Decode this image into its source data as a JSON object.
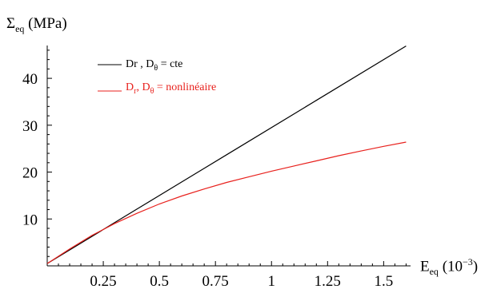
{
  "chart_data": {
    "type": "line",
    "ylabel": {
      "main": "Σ",
      "sub": "eq",
      "unit": " (MPa)"
    },
    "xlabel": {
      "main": "E",
      "sub": "eq",
      "unit_pre": " (10",
      "unit_exp": "−3",
      "unit_post": ")"
    },
    "x_ticks": [
      0.25,
      0.5,
      0.75,
      1,
      1.25,
      1.5
    ],
    "x_tick_labels": [
      "0.25",
      "0.5",
      "0.75",
      "1",
      "1.25",
      "1.5"
    ],
    "y_ticks": [
      10,
      20,
      30,
      40
    ],
    "y_tick_labels": [
      "10",
      "20",
      "30",
      "40"
    ],
    "xlim": [
      0,
      1.62
    ],
    "ylim": [
      0,
      47
    ],
    "grid": false,
    "legend_position": "top-left",
    "series": [
      {
        "name": "Dr , Dθ = cte",
        "legend": {
          "p1": "Dr , D",
          "p1sub": "",
          "p2sub": "θ",
          "p3": " = cte"
        },
        "color": "#000000",
        "x": [
          0.0,
          0.4,
          0.8,
          1.2,
          1.6
        ],
        "y": [
          0.5,
          12.1,
          23.7,
          35.3,
          46.9
        ]
      },
      {
        "name": "Dr , Dθ = nonlinéaire",
        "legend": {
          "p1": "D",
          "p1sub": "r",
          "p2sub": "θ",
          "p3": " = nonlinéaire"
        },
        "color": "#e8211d",
        "x": [
          0.0,
          0.1,
          0.2,
          0.3,
          0.4,
          0.5,
          0.6,
          0.7,
          0.8,
          0.9,
          1.0,
          1.1,
          1.2,
          1.3,
          1.4,
          1.5,
          1.6
        ],
        "y": [
          0.5,
          3.6,
          6.5,
          9.0,
          11.2,
          13.2,
          14.9,
          16.4,
          17.8,
          19.0,
          20.2,
          21.3,
          22.4,
          23.5,
          24.5,
          25.5,
          26.4
        ]
      }
    ]
  }
}
